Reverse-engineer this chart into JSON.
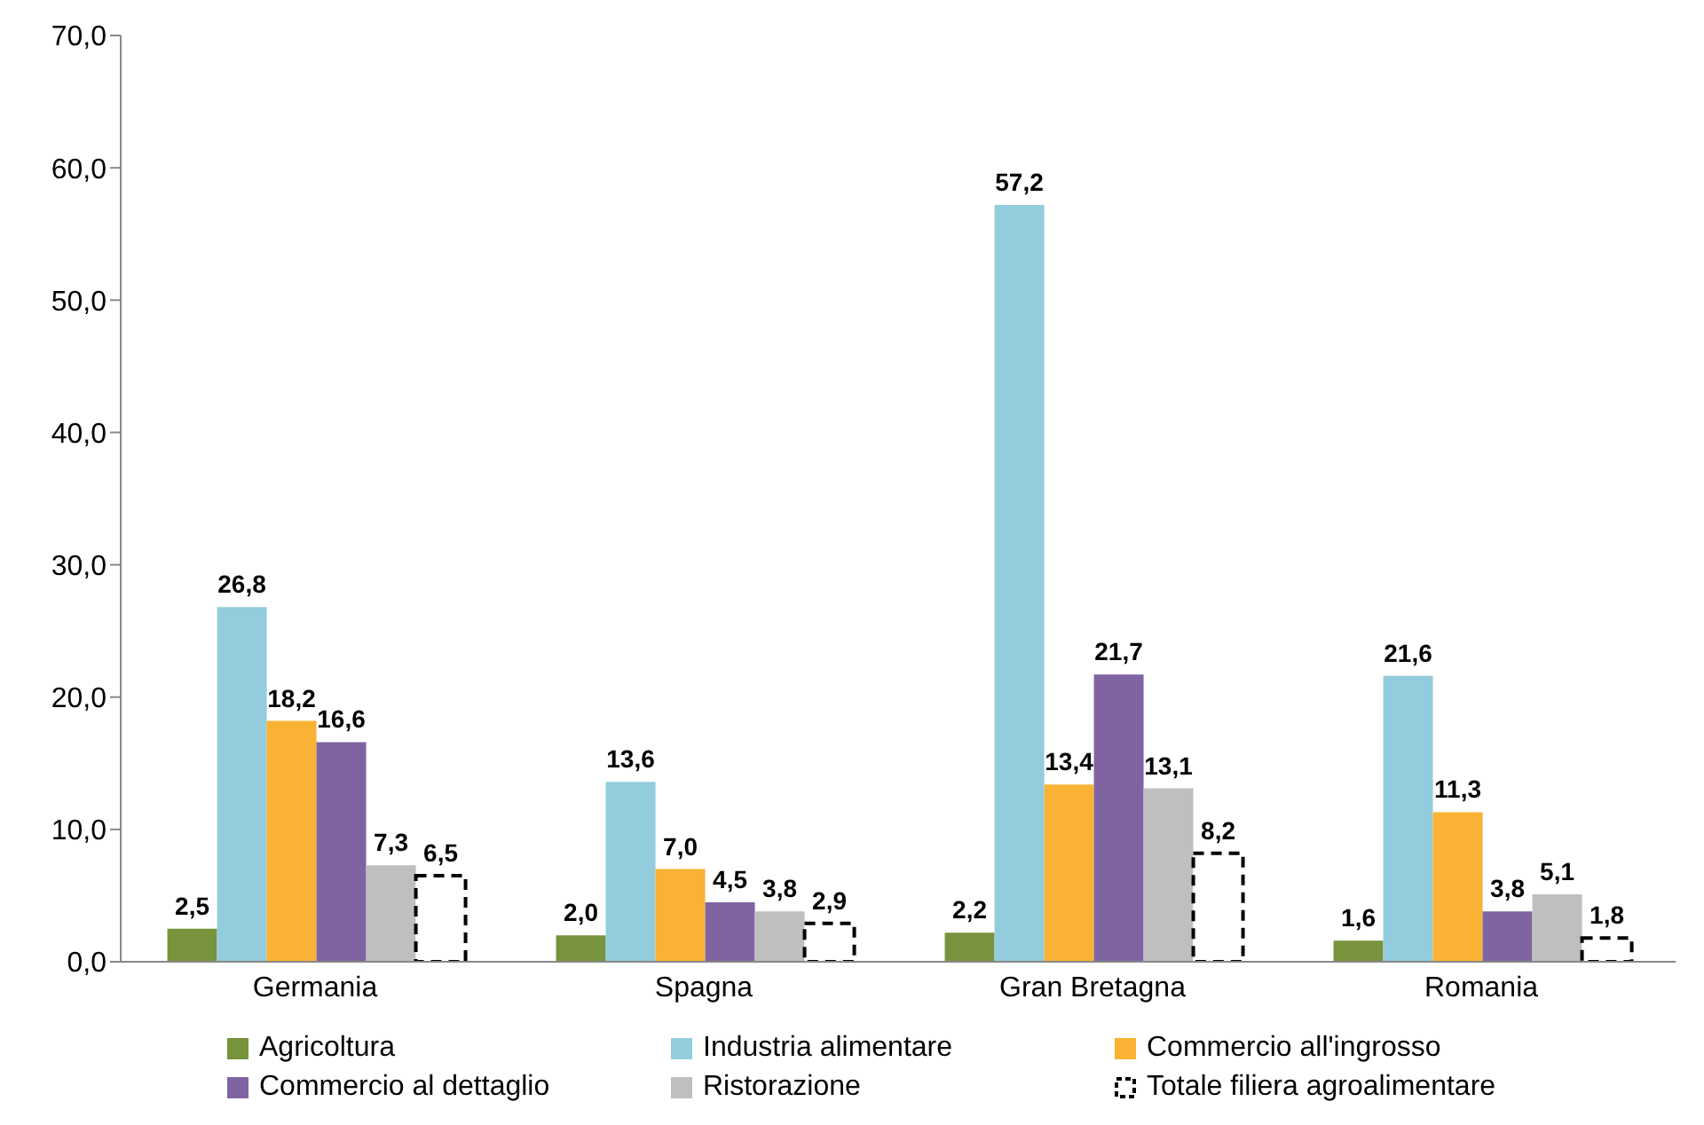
{
  "chart_data": {
    "type": "bar",
    "categories": [
      "Germania",
      "Spagna",
      "Gran Bretagna",
      "Romania"
    ],
    "series": [
      {
        "name": "Agricoltura",
        "color": "#77933c",
        "values": [
          2.5,
          2.0,
          2.2,
          1.6
        ],
        "value_labels": [
          "2,5",
          "2,0",
          "2,2",
          "1,6"
        ]
      },
      {
        "name": "Industria alimentare",
        "color": "#93cddd",
        "values": [
          26.8,
          13.6,
          57.2,
          21.6
        ],
        "value_labels": [
          "26,8",
          "13,6",
          "57,2",
          "21,6"
        ]
      },
      {
        "name": "Commercio all'ingrosso",
        "color": "#f9b233",
        "values": [
          18.2,
          7.0,
          13.4,
          11.3
        ],
        "value_labels": [
          "18,2",
          "7,0",
          "13,4",
          "11,3"
        ]
      },
      {
        "name": "Commercio al dettaglio",
        "color": "#8064a2",
        "values": [
          16.6,
          4.5,
          21.7,
          3.8
        ],
        "value_labels": [
          "16,6",
          "4,5",
          "21,7",
          "3,8"
        ]
      },
      {
        "name": "Ristorazione",
        "color": "#bfbfbf",
        "values": [
          7.3,
          3.8,
          13.1,
          5.1
        ],
        "value_labels": [
          "7,3",
          "3,8",
          "13,1",
          "5,1"
        ]
      },
      {
        "name": "Totale filiera agroalimentare",
        "color": "#000000",
        "line_style": "dashed",
        "values": [
          6.5,
          2.9,
          8.2,
          1.8
        ],
        "value_labels": [
          "6,5",
          "2,9",
          "8,2",
          "1,8"
        ]
      }
    ],
    "ylim": [
      0,
      70
    ],
    "yticks": [
      {
        "value": 0,
        "label": "0,0"
      },
      {
        "value": 10,
        "label": "10,0"
      },
      {
        "value": 20,
        "label": "20,0"
      },
      {
        "value": 30,
        "label": "30,0"
      },
      {
        "value": 40,
        "label": "40,0"
      },
      {
        "value": 50,
        "label": "50,0"
      },
      {
        "value": 60,
        "label": "60,0"
      },
      {
        "value": 70,
        "label": "70,0"
      }
    ],
    "grid": false,
    "legend": "bottom"
  }
}
